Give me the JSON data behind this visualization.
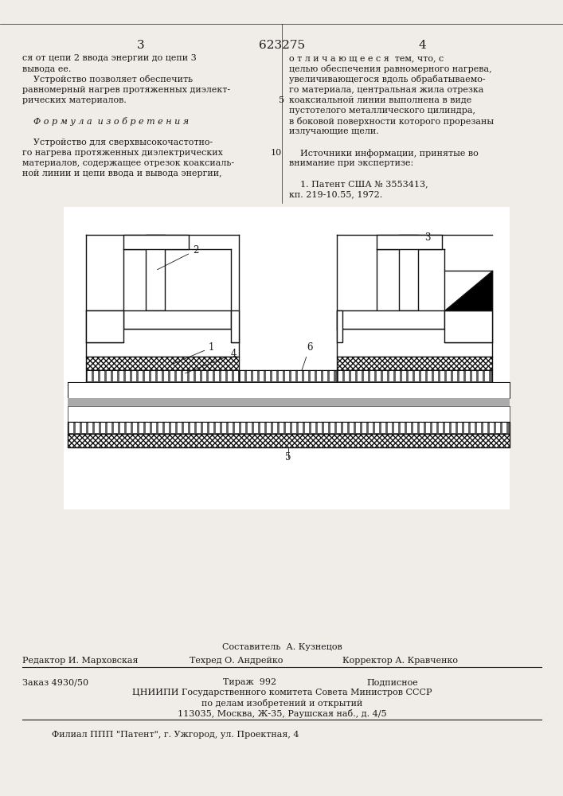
{
  "page_number_left": "3",
  "page_number_center": "623275",
  "page_number_right": "4",
  "col_left_text": [
    "ся от цепи 2 ввода энергии до цепи 3",
    "вывода ее.",
    "    Устройство позволяет обеспечить",
    "равномерный нагрев протяженных диэлект-",
    "рических материалов.",
    "",
    "    Ф о р м у л а  и з о б р е т е н и я",
    "",
    "    Устройство для сверхвысокочастотно-",
    "го нагрева протяженных диэлектрических",
    "материалов, содержащее отрезок коаксиаль-",
    "ной линии и цепи ввода и вывода энергии,"
  ],
  "col_right_text": [
    "о т л и ч а ю щ е е с я  тем, что, с",
    "целью обеспечения равномерного нагрева,",
    "увеличивающегося вдоль обрабатываемо-",
    "го материала, центральная жила отрезка",
    "коаксиальной линии выполнена в виде",
    "пустотелого металлического цилиндра,",
    "в боковой поверхности которого прорезаны",
    "излучающие щели.",
    "",
    "    Источники информации, принятые во",
    "внимание при экспертизе:",
    "",
    "    1. Патент США № 3553413,",
    "кп. 219-10.55, 1972."
  ],
  "line_number_5": "5",
  "line_number_10": "10",
  "footer_compiler": "Составитель  А. Кузнецов",
  "footer_editor": "Редактор И. Марховская",
  "footer_techred": "Техред О. Андрейко",
  "footer_corrector": "Корректор А. Кравченко",
  "footer_order": "Заказ 4930/50",
  "footer_tirazh": "Тираж  992",
  "footer_podpisnoe": "Подписное",
  "footer_org1": "ЦНИИПИ Государственного комитета Совета Министров СССР",
  "footer_org2": "по делам изобретений и открытий",
  "footer_address": "113035, Москва, Ж-35, Раушская наб., д. 4/5",
  "footer_filial": "Филиал ППП \"Патент\", г. Ужгород, ул. Проектная, 4",
  "bg_color": "#f0ede8",
  "text_color": "#1a1a1a"
}
